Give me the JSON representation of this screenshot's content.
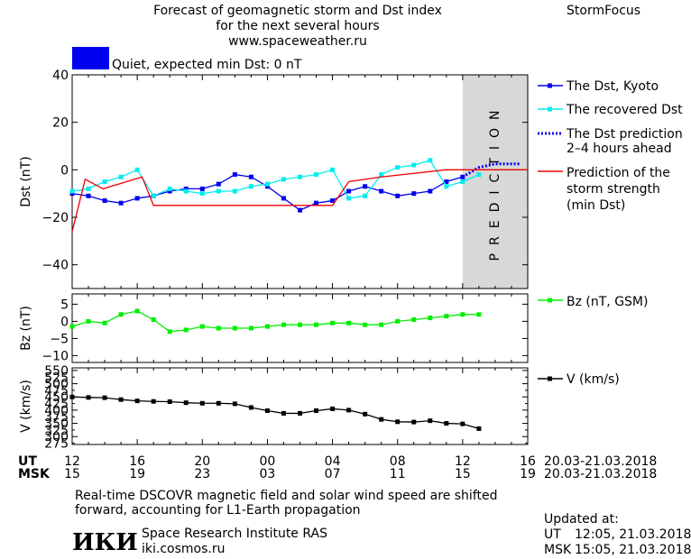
{
  "header": {
    "title_lines": [
      "Forecast of geomagnetic storm and Dst index",
      "for the next several hours",
      "www.spaceweather.ru"
    ],
    "brand": "StormFocus",
    "status_color": "#0000ee",
    "status_text": "Quiet, expected min Dst: 0 nT"
  },
  "time_axis": {
    "ut_label": "UT",
    "msk_label": "MSK",
    "ut_ticks": [
      "12",
      "16",
      "20",
      "00",
      "04",
      "08",
      "12",
      "16"
    ],
    "msk_ticks": [
      "15",
      "19",
      "23",
      "03",
      "07",
      "11",
      "15",
      "19"
    ],
    "date_range_ut": "20.03-21.03.2018",
    "date_range_msk": "20.03-21.03.2018"
  },
  "chart_data": [
    {
      "type": "line",
      "ylabel": "Dst (nT)",
      "ylim": [
        -50,
        40
      ],
      "yticks": [
        40,
        20,
        0,
        -20,
        -40
      ],
      "x_unit": "hours after 12 UT 20.03.2018",
      "xlim": [
        0,
        28
      ],
      "prediction_region": {
        "label": "PREDICTION",
        "x_start": 24,
        "x_end": 28
      },
      "series": [
        {
          "name": "The Dst, Kyoto",
          "color": "#0000ee",
          "x": [
            0,
            1,
            2,
            3,
            4,
            5,
            6,
            7,
            8,
            9,
            10,
            11,
            12,
            13,
            14,
            15,
            16,
            17,
            18,
            19,
            20,
            21,
            22,
            23,
            24
          ],
          "y": [
            -10,
            -11,
            -13,
            -14,
            -12,
            -11,
            -9,
            -8,
            -8,
            -6,
            -2,
            -3,
            -7,
            -12,
            -17,
            -14,
            -13,
            -9,
            -7,
            -9,
            -11,
            -10,
            -9,
            -5,
            -3
          ]
        },
        {
          "name": "The recovered Dst",
          "color": "#00eeee",
          "x": [
            0,
            1,
            2,
            3,
            4,
            5,
            6,
            7,
            8,
            9,
            10,
            11,
            12,
            13,
            14,
            15,
            16,
            17,
            18,
            19,
            20,
            21,
            22,
            23,
            24,
            25
          ],
          "y": [
            -9,
            -8,
            -5,
            -3,
            0,
            -11,
            -8,
            -9,
            -10,
            -9,
            -9,
            -7,
            -6,
            -4,
            -3,
            -2,
            0,
            -12,
            -11,
            -2,
            1,
            2,
            4,
            -7,
            -5,
            -2
          ]
        },
        {
          "name": "The Dst prediction",
          "name_line2": "2–4 hours ahead",
          "color": "#0000ee",
          "x": [
            24,
            24.5,
            25,
            26,
            27,
            27.5
          ],
          "y": [
            -3,
            -1,
            1,
            2.5,
            2.5,
            2.5
          ]
        },
        {
          "name": "Prediction of the",
          "name_line2": "storm strength",
          "name_line3": "(min Dst)",
          "color": "#ee0000",
          "x": [
            0,
            0.8,
            1.9,
            4.3,
            5,
            23,
            28
          ],
          "y": [
            -26,
            -4,
            -8,
            -3,
            -15,
            0,
            0
          ],
          "step_points": [
            [
              0,
              -26
            ],
            [
              0.8,
              -4
            ],
            [
              1.9,
              -8
            ],
            [
              4.3,
              -3
            ],
            [
              5,
              -15
            ],
            [
              16,
              -15
            ],
            [
              17,
              -5
            ],
            [
              19,
              -3
            ],
            [
              23,
              0
            ],
            [
              28,
              0
            ]
          ]
        }
      ]
    },
    {
      "type": "line",
      "ylabel": "Bz (nT)",
      "ylim": [
        -12,
        8
      ],
      "yticks": [
        5,
        0,
        -5,
        -10
      ],
      "x_unit": "hours after 12 UT 20.03.2018",
      "series": [
        {
          "name": "Bz (nT, GSM)",
          "color": "#00ee00",
          "x": [
            0,
            1,
            2,
            3,
            4,
            5,
            6,
            7,
            8,
            9,
            10,
            11,
            12,
            13,
            14,
            15,
            16,
            17,
            18,
            19,
            20,
            21,
            22,
            23,
            24,
            25
          ],
          "y": [
            -1.5,
            0,
            -0.5,
            2,
            3,
            0.5,
            -3,
            -2.5,
            -1.5,
            -2,
            -2,
            -2,
            -1.5,
            -1,
            -1,
            -1,
            -0.5,
            -0.5,
            -1,
            -1,
            0,
            0.5,
            1,
            1.5,
            2,
            2
          ]
        }
      ]
    },
    {
      "type": "line",
      "ylabel": "V (km/s)",
      "ylim": [
        270,
        560
      ],
      "yticks": [
        550,
        500,
        450,
        400,
        350,
        300
      ],
      "extra_ticks": [
        525,
        475,
        425,
        375,
        325,
        275
      ],
      "x_unit": "hours after 12 UT 20.03.2018",
      "series": [
        {
          "name": "V (km/s)",
          "color": "#000000",
          "x": [
            0,
            1,
            2,
            3,
            4,
            5,
            6,
            7,
            8,
            9,
            10,
            11,
            12,
            13,
            14,
            15,
            16,
            17,
            18,
            19,
            20,
            21,
            22,
            23,
            24,
            25
          ],
          "y": [
            450,
            448,
            447,
            440,
            435,
            433,
            432,
            428,
            426,
            426,
            424,
            410,
            398,
            388,
            388,
            398,
            405,
            400,
            385,
            365,
            356,
            355,
            360,
            350,
            348,
            330
          ]
        }
      ]
    }
  ],
  "footer": {
    "note_line1": "Real-time DSCOVR magnetic field and solar wind speed are shifted",
    "note_line2": "forward, accounting for L1-Earth propagation",
    "logo_text": "ИКИ",
    "institute": "Space Research Institute RAS",
    "site": "iki.cosmos.ru",
    "updated_label": "Updated at:",
    "updated_ut_label": "UT",
    "updated_ut": "12:05, 21.03.2018",
    "updated_msk_label": "MSK",
    "updated_msk": "15:05, 21.03.2018"
  }
}
